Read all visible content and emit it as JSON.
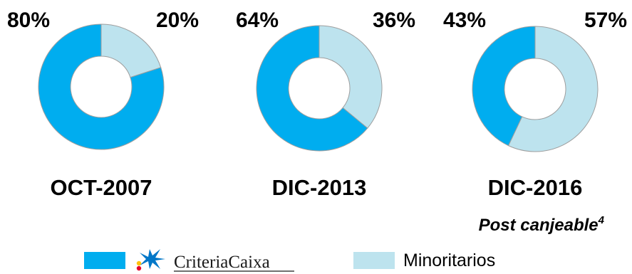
{
  "chart_data": [
    {
      "type": "pie",
      "variant": "donut",
      "title": "OCT-2007",
      "slices": [
        {
          "series": "CriteriaCaixa",
          "value": 80,
          "label": "80%"
        },
        {
          "series": "Minoritarios",
          "value": 20,
          "label": "20%"
        }
      ]
    },
    {
      "type": "pie",
      "variant": "donut",
      "title": "DIC-2013",
      "slices": [
        {
          "series": "CriteriaCaixa",
          "value": 64,
          "label": "64%"
        },
        {
          "series": "Minoritarios",
          "value": 36,
          "label": "36%"
        }
      ]
    },
    {
      "type": "pie",
      "variant": "donut",
      "title": "DIC-2016",
      "note": "Post canjeable",
      "note_superscript": "4",
      "slices": [
        {
          "series": "CriteriaCaixa",
          "value": 43,
          "label": "43%"
        },
        {
          "series": "Minoritarios",
          "value": 57,
          "label": "57%"
        }
      ]
    }
  ],
  "legend": {
    "placement": "bottom",
    "items": [
      {
        "name": "CriteriaCaixa",
        "color": "#00adef",
        "is_logo": true,
        "logo_icon": "criteriacaixa-star-icon"
      },
      {
        "name": "Minoritarios",
        "color": "#bde3ee",
        "is_logo": false
      }
    ]
  },
  "colors": {
    "CriteriaCaixa": "#00adef",
    "Minoritarios": "#bde3ee",
    "slice_border": "#9e9e9e",
    "logo_blue": "#0077c8",
    "logo_yellow": "#ffc20e",
    "logo_red": "#e4002b"
  }
}
